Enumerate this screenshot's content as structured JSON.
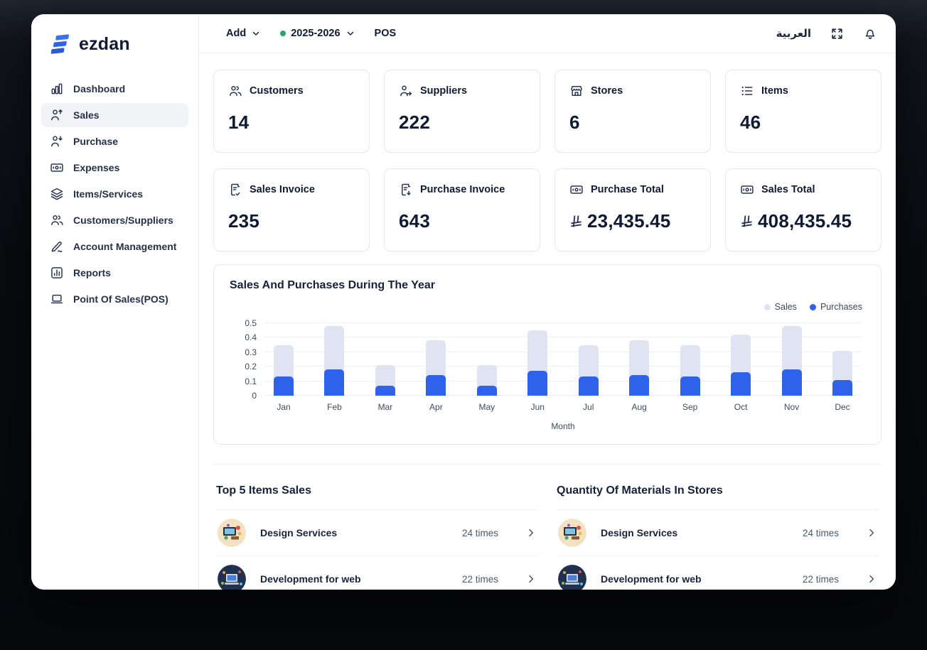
{
  "brand": {
    "name": "ezdan"
  },
  "sidebar": {
    "items": [
      {
        "id": "dashboard",
        "label": "Dashboard",
        "icon": "dashboard",
        "active": false
      },
      {
        "id": "sales",
        "label": "Sales",
        "icon": "person-up",
        "active": true
      },
      {
        "id": "purchase",
        "label": "Purchase",
        "icon": "person-down",
        "active": false
      },
      {
        "id": "expenses",
        "label": "Expenses",
        "icon": "banknote",
        "active": false
      },
      {
        "id": "items-services",
        "label": "Items/Services",
        "icon": "layers",
        "active": false
      },
      {
        "id": "customers-suppliers",
        "label": "Customers/Suppliers",
        "icon": "people",
        "active": false
      },
      {
        "id": "account-management",
        "label": "Account Management",
        "icon": "pen",
        "active": false
      },
      {
        "id": "reports",
        "label": "Reports",
        "icon": "report-box",
        "active": false
      },
      {
        "id": "point-of-sales",
        "label": "Point Of Sales(POS)",
        "icon": "laptop",
        "active": false
      }
    ]
  },
  "topbar": {
    "add_label": "Add",
    "fiscal_year": "2025-2026",
    "pos_label": "POS",
    "language_label": "العربية"
  },
  "stats": {
    "cards": [
      {
        "id": "customers",
        "label": "Customers",
        "value": "14",
        "icon": "people",
        "currency": false
      },
      {
        "id": "suppliers",
        "label": "Suppliers",
        "value": "222",
        "icon": "person-arrow",
        "currency": false
      },
      {
        "id": "stores",
        "label": "Stores",
        "value": "6",
        "icon": "store",
        "currency": false
      },
      {
        "id": "items",
        "label": "Items",
        "value": "46",
        "icon": "list",
        "currency": false
      },
      {
        "id": "sales-invoice",
        "label": "Sales Invoice",
        "value": "235",
        "icon": "file-check",
        "currency": false
      },
      {
        "id": "purchase-invoice",
        "label": "Purchase Invoice",
        "value": "643",
        "icon": "file-down",
        "currency": false
      },
      {
        "id": "purchase-total",
        "label": "Purchase Total",
        "value": "23,435.45",
        "icon": "banknote",
        "currency": true
      },
      {
        "id": "sales-total",
        "label": "Sales Total",
        "value": "408,435.45",
        "icon": "banknote",
        "currency": true
      }
    ],
    "currency_symbol_name": "saudi-riyal"
  },
  "chart_data": {
    "type": "bar",
    "bar_style": "overlay",
    "title": "Sales And Purchases During The Year",
    "xlabel": "Month",
    "categories": [
      "Jan",
      "Feb",
      "Mar",
      "Apr",
      "May",
      "Jun",
      "Jul",
      "Aug",
      "Sep",
      "Oct",
      "Nov",
      "Dec"
    ],
    "series": [
      {
        "name": "Sales",
        "color": "#dfe3f2",
        "values": [
          0.35,
          0.48,
          0.21,
          0.38,
          0.21,
          0.45,
          0.35,
          0.38,
          0.35,
          0.42,
          0.48,
          0.31
        ]
      },
      {
        "name": "Purchases",
        "color": "#2f62ea",
        "values": [
          0.13,
          0.18,
          0.07,
          0.14,
          0.07,
          0.17,
          0.13,
          0.14,
          0.13,
          0.16,
          0.18,
          0.11
        ]
      }
    ],
    "ylim": [
      0,
      0.5
    ],
    "yticks": [
      0,
      0.1,
      0.2,
      0.3,
      0.4,
      0.5
    ],
    "grid": true,
    "legend_position": "top-right"
  },
  "bottom_sections": [
    {
      "id": "top-items-sales",
      "title": "Top 5 Items Sales",
      "items": [
        {
          "name": "Design Services",
          "count": "24 times",
          "thumb": "design"
        },
        {
          "name": "Development for web",
          "count": "22 times",
          "thumb": "webdev"
        }
      ]
    },
    {
      "id": "quantity-materials-stores",
      "title": "Quantity Of Materials In Stores",
      "items": [
        {
          "name": "Design Services",
          "count": "24 times",
          "thumb": "design"
        },
        {
          "name": "Development for web",
          "count": "22 times",
          "thumb": "webdev"
        }
      ]
    }
  ],
  "colors": {
    "accent_blue": "#2f62ea",
    "sales_bar": "#dfe3f2",
    "green_status": "#27a468",
    "navy_text": "#101b33",
    "border": "#e6e8ec"
  }
}
